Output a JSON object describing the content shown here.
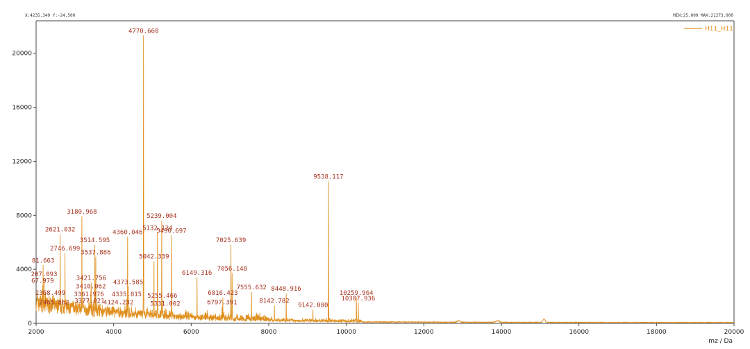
{
  "header": {
    "cursor_readout": "X:4235.349  Y:-24.500",
    "range_readout": "MIN:25.000  MAX:21273.000"
  },
  "colors": {
    "trace": "#e0901e",
    "peak_label": "#a6321e",
    "axis": "#444444"
  },
  "chart_data": {
    "type": "line",
    "title": "",
    "xlabel": "mz / Da",
    "ylabel": "",
    "xlim": [
      2000,
      20000
    ],
    "ylim": [
      0,
      22400
    ],
    "x_ticks": [
      2000,
      4000,
      6000,
      8000,
      10000,
      12000,
      14000,
      16000,
      18000,
      20000
    ],
    "x_tick_labels": [
      "2000",
      "4000",
      "6000",
      "8000",
      "10000",
      "12000",
      "14000",
      "16000",
      "18000",
      "20000"
    ],
    "y_ticks": [
      0,
      4000,
      8000,
      12000,
      16000,
      20000
    ],
    "y_tick_labels": [
      "0",
      "4000",
      "8000",
      "12000",
      "16000",
      "20000"
    ],
    "grid": false,
    "legend_position": "top-right",
    "series": [
      {
        "name": "H11_H11",
        "peaks": [
          {
            "x": 2181.663,
            "y": 4300
          },
          {
            "x": 2207.093,
            "y": 3300
          },
          {
            "x": 2167.979,
            "y": 2800
          },
          {
            "x": 2368.499,
            "y": 1900
          },
          {
            "x": 2465.862,
            "y": 1200
          },
          {
            "x": 2621.032,
            "y": 6600
          },
          {
            "x": 2746.699,
            "y": 5200
          },
          {
            "x": 3180.968,
            "y": 7900
          },
          {
            "x": 3361.976,
            "y": 1800
          },
          {
            "x": 3377.021,
            "y": 1300
          },
          {
            "x": 3410.062,
            "y": 2400
          },
          {
            "x": 3421.756,
            "y": 3000
          },
          {
            "x": 3514.595,
            "y": 5800
          },
          {
            "x": 3537.886,
            "y": 4900
          },
          {
            "x": 4124.232,
            "y": 1200
          },
          {
            "x": 4335.815,
            "y": 1800
          },
          {
            "x": 4360.046,
            "y": 6400
          },
          {
            "x": 4373.585,
            "y": 2700
          },
          {
            "x": 4770.66,
            "y": 21300
          },
          {
            "x": 5042.339,
            "y": 4600
          },
          {
            "x": 5132.134,
            "y": 6700
          },
          {
            "x": 5239.004,
            "y": 7600
          },
          {
            "x": 5255.466,
            "y": 1700
          },
          {
            "x": 5331.002,
            "y": 1100
          },
          {
            "x": 5490.697,
            "y": 6500
          },
          {
            "x": 6149.316,
            "y": 3400
          },
          {
            "x": 6797.391,
            "y": 1200
          },
          {
            "x": 6816.423,
            "y": 1900
          },
          {
            "x": 7025.639,
            "y": 5800
          },
          {
            "x": 7056.148,
            "y": 3700
          },
          {
            "x": 7555.632,
            "y": 2300
          },
          {
            "x": 8142.782,
            "y": 1300
          },
          {
            "x": 8448.916,
            "y": 2200
          },
          {
            "x": 9142.08,
            "y": 1000
          },
          {
            "x": 9538.117,
            "y": 10500
          },
          {
            "x": 10259.964,
            "y": 1900
          },
          {
            "x": 10307.936,
            "y": 1500
          }
        ],
        "peak_labels": [
          {
            "text": "81.663",
            "x": 2181.663,
            "y": 4300
          },
          {
            "text": "207.093",
            "x": 2207.093,
            "y": 3300
          },
          {
            "text": "67.979",
            "x": 2167.979,
            "y": 2800
          },
          {
            "text": "2368.499",
            "x": 2368.499,
            "y": 1900
          },
          {
            "text": "2465.862",
            "x": 2465.862,
            "y": 1200
          },
          {
            "text": "2621.032",
            "x": 2621.032,
            "y": 6600
          },
          {
            "text": "2746.699",
            "x": 2746.699,
            "y": 5200
          },
          {
            "text": "3180.968",
            "x": 3180.968,
            "y": 7900
          },
          {
            "text": "3361.976",
            "x": 3361.976,
            "y": 1800
          },
          {
            "text": "3377.021",
            "x": 3377.021,
            "y": 1300
          },
          {
            "text": "3410.062",
            "x": 3410.062,
            "y": 2400
          },
          {
            "text": "3421.756",
            "x": 3421.756,
            "y": 3000
          },
          {
            "text": "3514.595",
            "x": 3514.595,
            "y": 5800
          },
          {
            "text": "3537.886",
            "x": 3537.886,
            "y": 4900
          },
          {
            "text": "4124.232",
            "x": 4124.232,
            "y": 1200
          },
          {
            "text": "4335.815",
            "x": 4335.815,
            "y": 1800
          },
          {
            "text": "4360.046",
            "x": 4360.046,
            "y": 6400
          },
          {
            "text": "4373.585",
            "x": 4373.585,
            "y": 2700
          },
          {
            "text": "4770.660",
            "x": 4770.66,
            "y": 21300
          },
          {
            "text": "5042.339",
            "x": 5042.339,
            "y": 4600
          },
          {
            "text": "5132.134",
            "x": 5132.134,
            "y": 6700
          },
          {
            "text": "5239.004",
            "x": 5239.004,
            "y": 7600
          },
          {
            "text": "5255.466",
            "x": 5255.466,
            "y": 1700
          },
          {
            "text": "5331.002",
            "x": 5331.002,
            "y": 1100
          },
          {
            "text": "5490.697",
            "x": 5490.697,
            "y": 6500
          },
          {
            "text": "6149.316",
            "x": 6149.316,
            "y": 3400
          },
          {
            "text": "6797.391",
            "x": 6797.391,
            "y": 1200
          },
          {
            "text": "6816.423",
            "x": 6816.423,
            "y": 1900
          },
          {
            "text": "7025.639",
            "x": 7025.639,
            "y": 5800
          },
          {
            "text": "7056.148",
            "x": 7056.148,
            "y": 3700
          },
          {
            "text": "7555.632",
            "x": 7555.632,
            "y": 2300
          },
          {
            "text": "8142.782",
            "x": 8142.782,
            "y": 1300
          },
          {
            "text": "8448.916",
            "x": 8448.916,
            "y": 2200
          },
          {
            "text": "9142.080",
            "x": 9142.08,
            "y": 1000
          },
          {
            "text": "9538.117",
            "x": 9538.117,
            "y": 10500
          },
          {
            "text": "10259.964",
            "x": 10259.964,
            "y": 1900
          },
          {
            "text": "10307.936",
            "x": 10307.936,
            "y": 1500
          }
        ]
      }
    ]
  }
}
